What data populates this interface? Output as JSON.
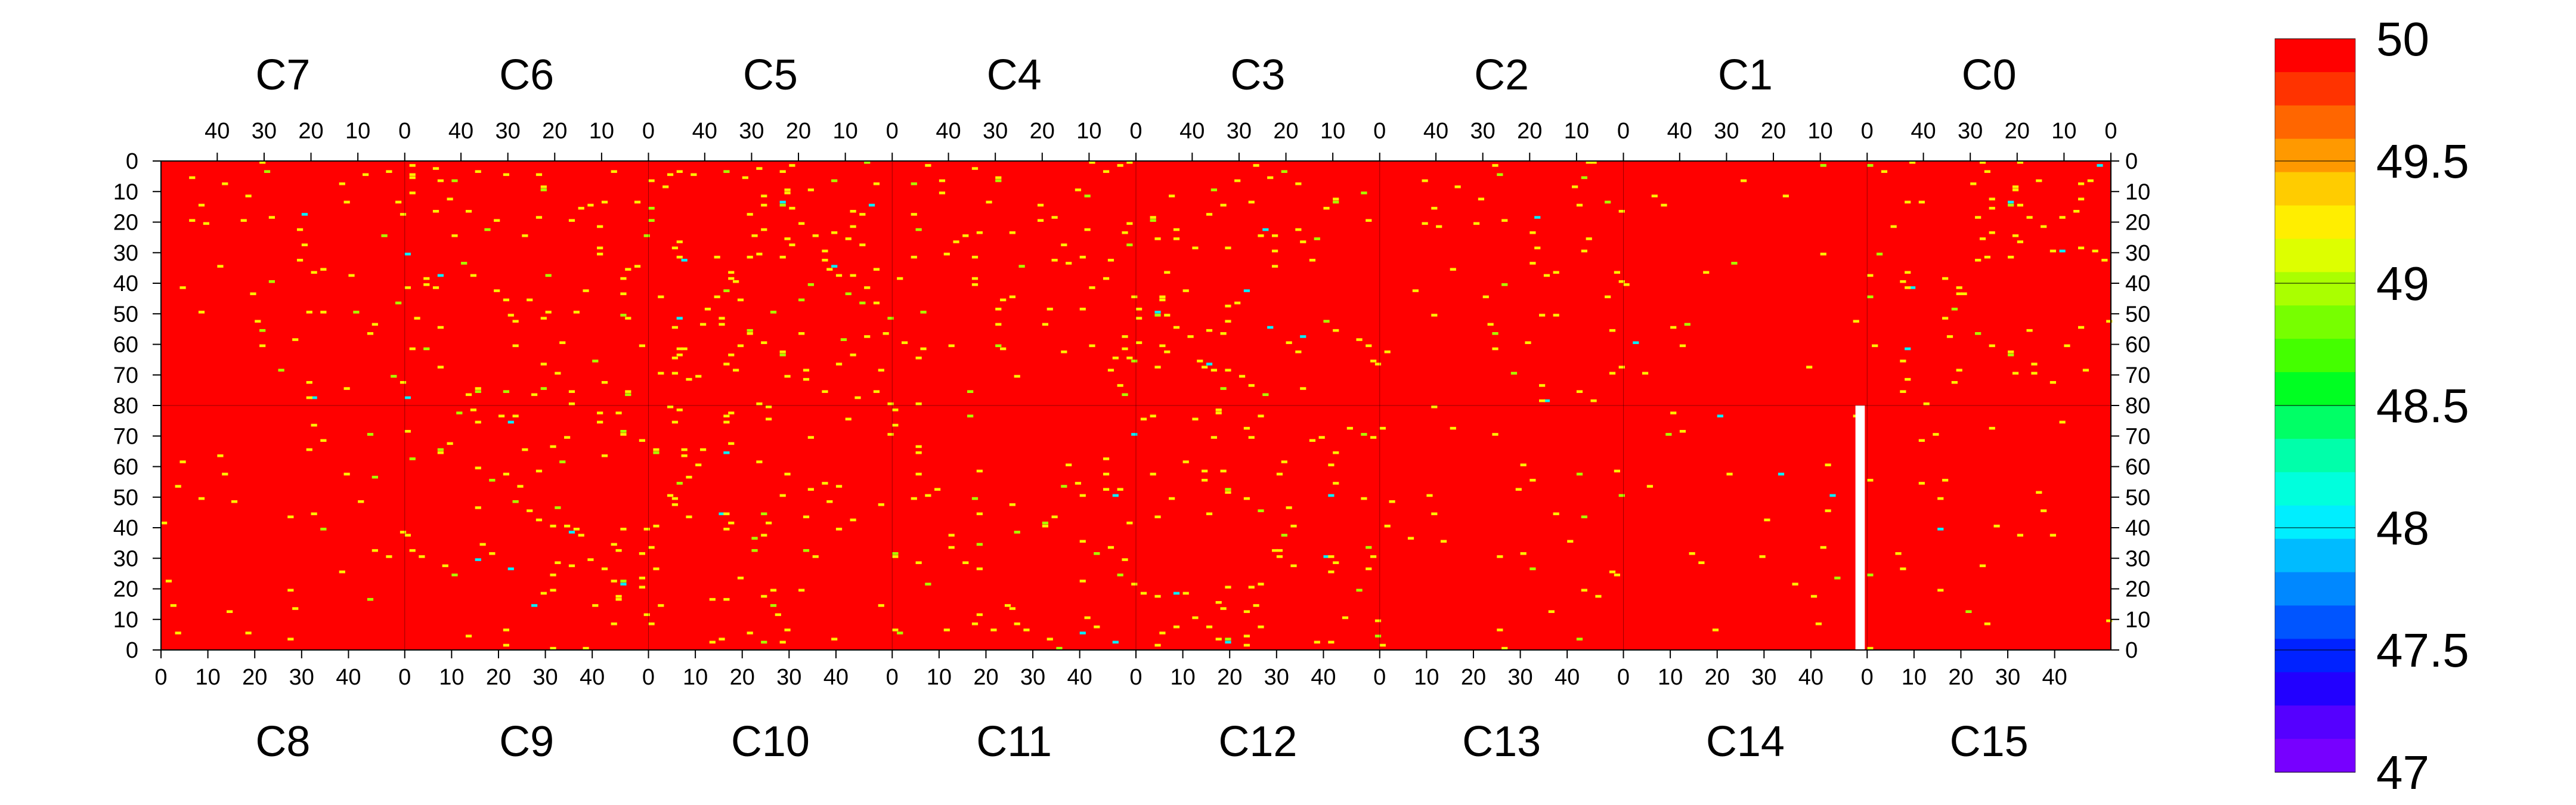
{
  "chart_data": {
    "type": "heatmap",
    "title": "",
    "top_chips": [
      "C7",
      "C6",
      "C5",
      "C4",
      "C3",
      "C2",
      "C1",
      "C0"
    ],
    "bottom_chips": [
      "C8",
      "C9",
      "C10",
      "C11",
      "C12",
      "C13",
      "C14",
      "C15"
    ],
    "top_column_ticks": [
      "40",
      "30",
      "20",
      "10",
      "0"
    ],
    "bottom_column_ticks": [
      "0",
      "10",
      "20",
      "30",
      "40"
    ],
    "left_row_ticks": [
      "0",
      "10",
      "20",
      "30",
      "40",
      "50",
      "60",
      "70",
      "80",
      "70",
      "60",
      "50",
      "40",
      "30",
      "20",
      "10",
      "0"
    ],
    "right_row_ticks": [
      "0",
      "10",
      "20",
      "30",
      "40",
      "50",
      "60",
      "70",
      "80",
      "70",
      "60",
      "50",
      "40",
      "30",
      "20",
      "10",
      "0"
    ],
    "columns_per_chip": 52,
    "rows_per_half": 80,
    "zlim": [
      47,
      50
    ],
    "background_value": 50,
    "colorbar_labels": [
      "50",
      "49.5",
      "49",
      "48.5",
      "48",
      "47.5",
      "47"
    ],
    "colorbar_levels": [
      50,
      49.5,
      49,
      48.5,
      48,
      47.5,
      47
    ],
    "colorbar_colors": [
      "#ff0000",
      "#ff3300",
      "#ff6600",
      "#ff9900",
      "#ffcc00",
      "#ffee00",
      "#ddff00",
      "#aaff00",
      "#77ff00",
      "#44ff00",
      "#00ff22",
      "#00ff66",
      "#00ffaa",
      "#00ffdd",
      "#00eeff",
      "#00bbff",
      "#0088ff",
      "#0055ff",
      "#0022ff",
      "#2200ff",
      "#5500ff",
      "#7700ff"
    ],
    "missing_region": {
      "chip": "C14",
      "columns": [
        50,
        51
      ],
      "rows": [
        0,
        80
      ]
    },
    "sparse_pixel_density_by_chip": {
      "C7": 0.012,
      "C6": 0.02,
      "C5": 0.02,
      "C4": 0.018,
      "C3": 0.016,
      "C2": 0.012,
      "C1": 0.004,
      "C0": 0.014,
      "C8": 0.01,
      "C9": 0.016,
      "C10": 0.016,
      "C11": 0.016,
      "C12": 0.014,
      "C13": 0.01,
      "C14": 0.004,
      "C15": 0.006
    }
  }
}
